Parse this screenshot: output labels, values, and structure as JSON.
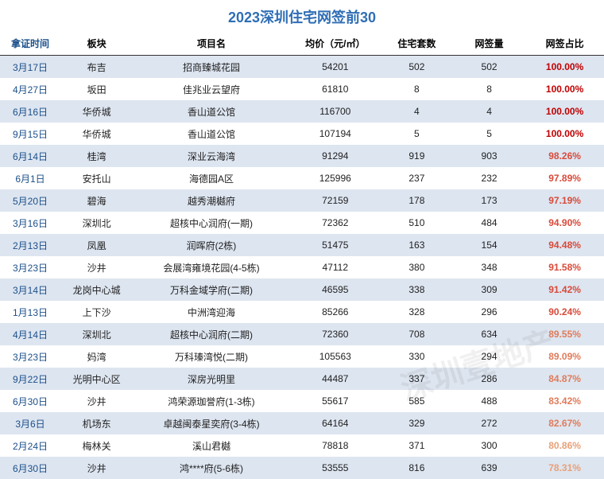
{
  "title": "2023深圳住宅网签前30",
  "title_color": "#2f6eb5",
  "columns": [
    {
      "key": "date",
      "label": "拿证时间"
    },
    {
      "key": "area",
      "label": "板块"
    },
    {
      "key": "project",
      "label": "项目名"
    },
    {
      "key": "price",
      "label": "均价（元/㎡）"
    },
    {
      "key": "units",
      "label": "住宅套数"
    },
    {
      "key": "signed",
      "label": "网签量"
    },
    {
      "key": "pct",
      "label": "网签占比"
    }
  ],
  "row_colors": {
    "stripe_a": "#ffffff",
    "stripe_b": "#dde5f0"
  },
  "pct_colors": {
    "100": "#c00000",
    "high": "#d84a3a",
    "mid": "#e07b5a",
    "low": "#e8a078"
  },
  "rows": [
    {
      "date": "3月17日",
      "area": "布吉",
      "project": "招商臻城花园",
      "price": "54201",
      "units": "502",
      "signed": "502",
      "pct": "100.00%",
      "pct_level": "100"
    },
    {
      "date": "4月27日",
      "area": "坂田",
      "project": "佳兆业云望府",
      "price": "61810",
      "units": "8",
      "signed": "8",
      "pct": "100.00%",
      "pct_level": "100"
    },
    {
      "date": "6月16日",
      "area": "华侨城",
      "project": "香山道公馆",
      "price": "116700",
      "units": "4",
      "signed": "4",
      "pct": "100.00%",
      "pct_level": "100"
    },
    {
      "date": "9月15日",
      "area": "华侨城",
      "project": "香山道公馆",
      "price": "107194",
      "units": "5",
      "signed": "5",
      "pct": "100.00%",
      "pct_level": "100"
    },
    {
      "date": "6月14日",
      "area": "桂湾",
      "project": "深业云海湾",
      "price": "91294",
      "units": "919",
      "signed": "903",
      "pct": "98.26%",
      "pct_level": "high"
    },
    {
      "date": "6月1日",
      "area": "安托山",
      "project": "海德园A区",
      "price": "125996",
      "units": "237",
      "signed": "232",
      "pct": "97.89%",
      "pct_level": "high"
    },
    {
      "date": "5月20日",
      "area": "碧海",
      "project": "越秀潮樾府",
      "price": "72159",
      "units": "178",
      "signed": "173",
      "pct": "97.19%",
      "pct_level": "high"
    },
    {
      "date": "3月16日",
      "area": "深圳北",
      "project": "超核中心润府(一期)",
      "price": "72362",
      "units": "510",
      "signed": "484",
      "pct": "94.90%",
      "pct_level": "high"
    },
    {
      "date": "2月13日",
      "area": "凤凰",
      "project": "润晖府(2栋)",
      "price": "51475",
      "units": "163",
      "signed": "154",
      "pct": "94.48%",
      "pct_level": "high"
    },
    {
      "date": "3月23日",
      "area": "沙井",
      "project": "会展湾雍境花园(4-5栋)",
      "price": "47112",
      "units": "380",
      "signed": "348",
      "pct": "91.58%",
      "pct_level": "high"
    },
    {
      "date": "3月14日",
      "area": "龙岗中心城",
      "project": "万科金域学府(二期)",
      "price": "46595",
      "units": "338",
      "signed": "309",
      "pct": "91.42%",
      "pct_level": "high"
    },
    {
      "date": "1月13日",
      "area": "上下沙",
      "project": "中洲湾迎海",
      "price": "85266",
      "units": "328",
      "signed": "296",
      "pct": "90.24%",
      "pct_level": "high"
    },
    {
      "date": "4月14日",
      "area": "深圳北",
      "project": "超核中心润府(二期)",
      "price": "72360",
      "units": "708",
      "signed": "634",
      "pct": "89.55%",
      "pct_level": "mid"
    },
    {
      "date": "3月23日",
      "area": "妈湾",
      "project": "万科瑧湾悦(二期)",
      "price": "105563",
      "units": "330",
      "signed": "294",
      "pct": "89.09%",
      "pct_level": "mid"
    },
    {
      "date": "9月22日",
      "area": "光明中心区",
      "project": "深房光明里",
      "price": "44487",
      "units": "337",
      "signed": "286",
      "pct": "84.87%",
      "pct_level": "mid"
    },
    {
      "date": "6月30日",
      "area": "沙井",
      "project": "鸿荣源珈誉府(1-3栋)",
      "price": "55617",
      "units": "585",
      "signed": "488",
      "pct": "83.42%",
      "pct_level": "mid"
    },
    {
      "date": "3月6日",
      "area": "机场东",
      "project": "卓越闽泰星奕府(3-4栋)",
      "price": "64164",
      "units": "329",
      "signed": "272",
      "pct": "82.67%",
      "pct_level": "mid"
    },
    {
      "date": "2月24日",
      "area": "梅林关",
      "project": "溪山君樾",
      "price": "78818",
      "units": "371",
      "signed": "300",
      "pct": "80.86%",
      "pct_level": "low"
    },
    {
      "date": "6月30日",
      "area": "沙井",
      "project": "鸿****府(5-6栋)",
      "price": "53555",
      "units": "816",
      "signed": "639",
      "pct": "78.31%",
      "pct_level": "low"
    }
  ],
  "watermark": "深圳壹地产"
}
